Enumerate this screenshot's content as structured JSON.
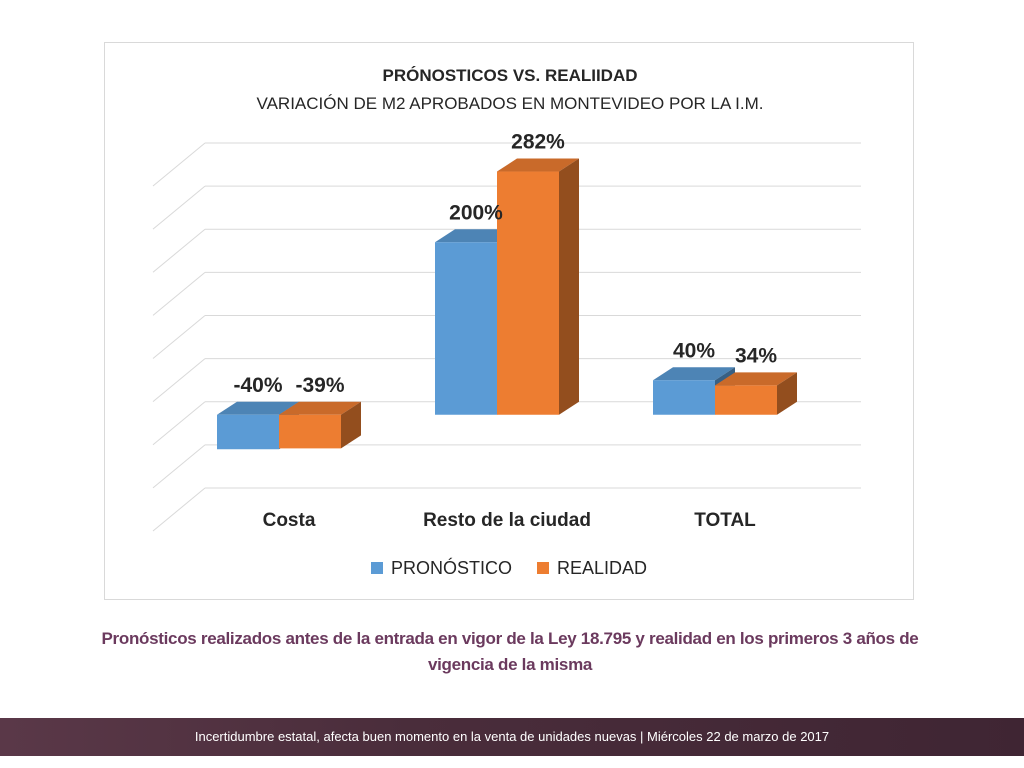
{
  "chart_data": {
    "type": "bar",
    "title": "PRÓNOSTICOS VS. REALIIDAD",
    "subtitle": "VARIACIÓN DE M2 APROBADOS EN MONTEVIDEO POR LA I.M.",
    "categories": [
      "Costa",
      "Resto de la ciudad",
      "TOTAL"
    ],
    "series": [
      {
        "name": "PRONÓSTICO",
        "values": [
          -40,
          200,
          40
        ],
        "labels": [
          "-40%",
          "200%",
          "40%"
        ],
        "color": "#5b9bd5"
      },
      {
        "name": "REALIDAD",
        "values": [
          -39,
          282,
          34
        ],
        "labels": [
          "-39%",
          "282%",
          "34%"
        ],
        "color": "#ed7d31"
      }
    ],
    "ylim": [
      -100,
      300
    ],
    "grid": true,
    "three_d": true,
    "legend_position": "bottom"
  },
  "caption": "Pronósticos realizados antes de la entrada en vigor de la Ley 18.795 y realidad en los primeros 3 años de vigencia de la misma",
  "footer": "Incertidumbre estatal, afecta buen momento en la venta de unidades nuevas | Miércoles 22 de marzo de 2017"
}
